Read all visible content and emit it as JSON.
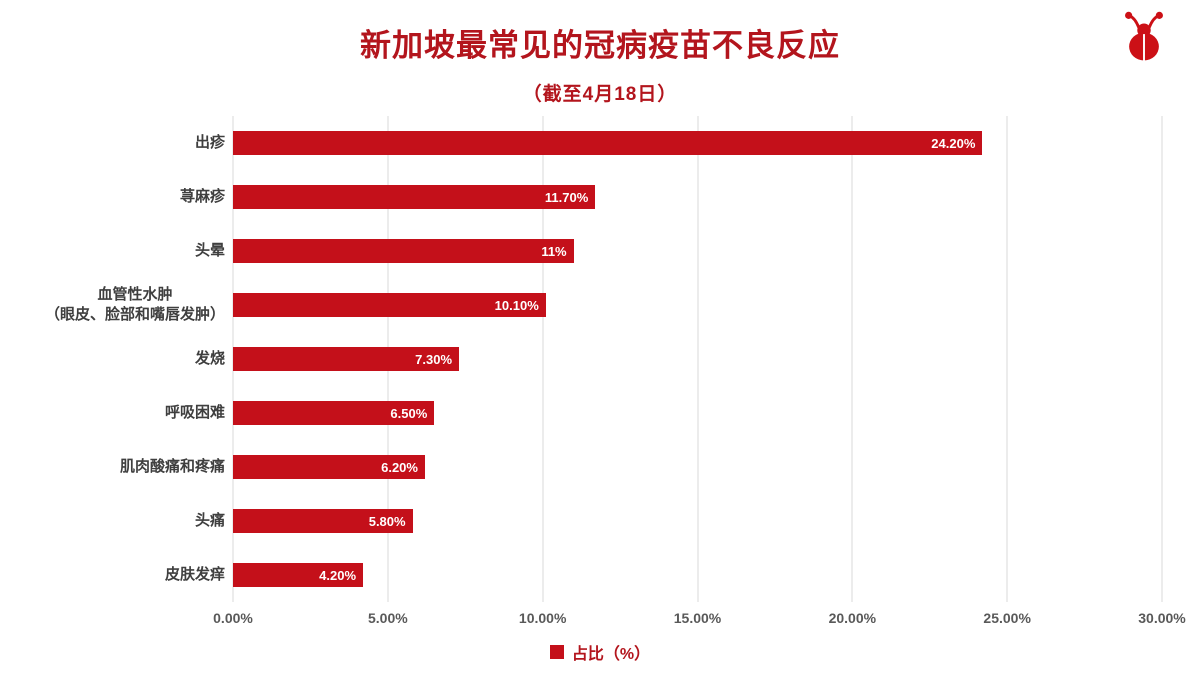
{
  "header": {
    "title": "新加坡最常见的冠病疫苗不良反应",
    "subtitle": "（截至4月18日）"
  },
  "colors": {
    "bar": "#c4101a",
    "title": "#b3151d",
    "legend_text": "#b3151d",
    "category_text": "#3f3f3f",
    "tick_text": "#595959",
    "gridline": "#d9d9d9",
    "logo": "#cc1016"
  },
  "chart_data": {
    "type": "bar",
    "orientation": "horizontal",
    "title": "新加坡最常见的冠病疫苗不良反应",
    "subtitle": "（截至4月18日）",
    "categories": [
      "出疹",
      "荨麻疹",
      "头晕",
      "血管性水肿\n（眼皮、脸部和嘴唇发肿）",
      "发烧",
      "呼吸困难",
      "肌肉酸痛和疼痛",
      "头痛",
      "皮肤发痒"
    ],
    "values": [
      24.2,
      11.7,
      11,
      10.1,
      7.3,
      6.5,
      6.2,
      5.8,
      4.2
    ],
    "value_labels": [
      "24.20%",
      "11.70%",
      "11%",
      "10.10%",
      "7.30%",
      "6.50%",
      "6.20%",
      "5.80%",
      "4.20%"
    ],
    "x_ticks": [
      "0.00%",
      "5.00%",
      "10.00%",
      "15.00%",
      "20.00%",
      "25.00%",
      "30.00%"
    ],
    "xlim": [
      0,
      30
    ],
    "grid": true,
    "legend": {
      "label": "占比（%）",
      "position": "bottom"
    }
  }
}
